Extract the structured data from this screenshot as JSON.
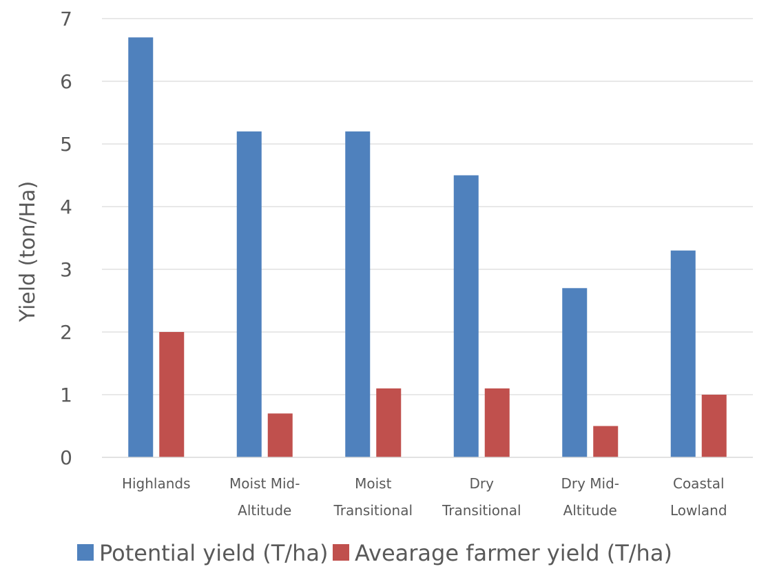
{
  "chart_data": {
    "type": "bar",
    "title": "",
    "xlabel": "",
    "ylabel": "Yield (ton/Ha)",
    "ylim": [
      0,
      7
    ],
    "yticks": [
      0,
      1,
      2,
      3,
      4,
      5,
      6,
      7
    ],
    "grid": true,
    "legend_position": "bottom",
    "categories": [
      [
        "Highlands"
      ],
      [
        "Moist Mid-",
        "Altitude"
      ],
      [
        "Moist",
        "Transitional"
      ],
      [
        "Dry",
        "Transitional"
      ],
      [
        "Dry Mid-",
        "Altitude"
      ],
      [
        "Coastal",
        "Lowland"
      ]
    ],
    "series": [
      {
        "name": "Potential yield (T/ha)",
        "color": "#4F81BD",
        "values": [
          6.7,
          5.2,
          5.2,
          4.5,
          2.7,
          3.3
        ]
      },
      {
        "name": "Avearage farmer  yield (T/ha)",
        "color": "#C0504D",
        "values": [
          2.0,
          0.7,
          1.1,
          1.1,
          0.5,
          1.0
        ]
      }
    ]
  }
}
